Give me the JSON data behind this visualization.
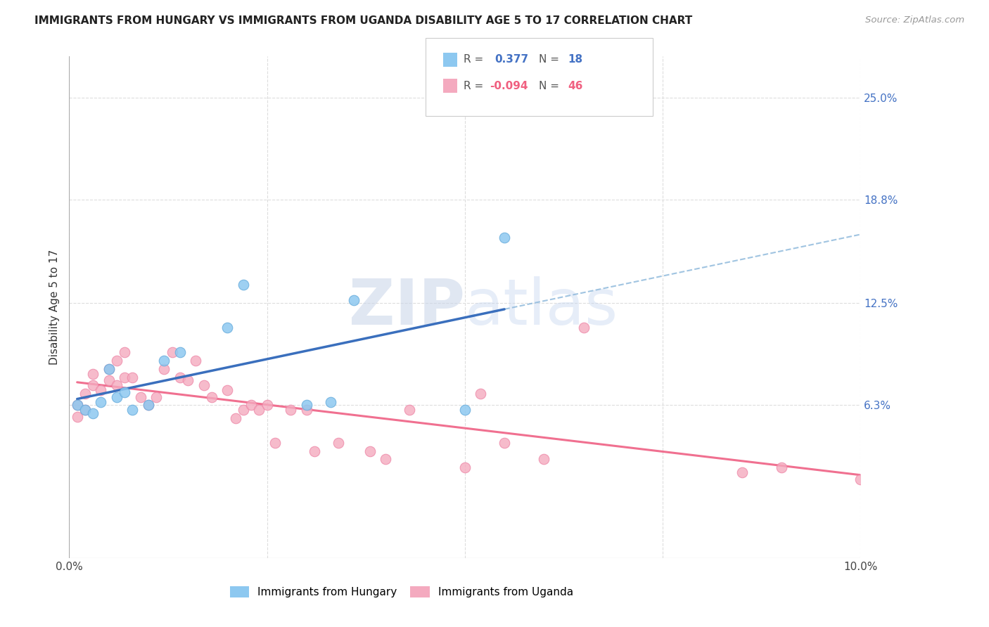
{
  "title": "IMMIGRANTS FROM HUNGARY VS IMMIGRANTS FROM UGANDA DISABILITY AGE 5 TO 17 CORRELATION CHART",
  "source": "Source: ZipAtlas.com",
  "ylabel": "Disability Age 5 to 17",
  "hungary_R": 0.377,
  "hungary_N": 18,
  "uganda_R": -0.094,
  "uganda_N": 46,
  "hungary_color": "#8DC8F0",
  "uganda_color": "#F4AABF",
  "hungary_line_color": "#3A6FBD",
  "uganda_line_color": "#F07090",
  "dashed_line_color": "#90BADC",
  "watermark_zip": "ZIP",
  "watermark_atlas": "atlas",
  "xlim": [
    0.0,
    0.1
  ],
  "ylim": [
    -0.03,
    0.275
  ],
  "ytick_values": [
    0.063,
    0.125,
    0.188,
    0.25
  ],
  "ytick_labels": [
    "6.3%",
    "12.5%",
    "18.8%",
    "25.0%"
  ],
  "xtick_values": [
    0.0,
    0.025,
    0.05,
    0.075,
    0.1
  ],
  "xtick_labels": [
    "0.0%",
    "",
    "",
    "",
    "10.0%"
  ],
  "hungary_x": [
    0.001,
    0.002,
    0.003,
    0.004,
    0.006,
    0.007,
    0.008,
    0.01,
    0.012,
    0.014,
    0.02,
    0.022,
    0.03,
    0.033,
    0.036,
    0.05,
    0.055,
    0.005
  ],
  "hungary_y": [
    0.063,
    0.06,
    0.058,
    0.065,
    0.068,
    0.071,
    0.06,
    0.063,
    0.09,
    0.095,
    0.11,
    0.136,
    0.063,
    0.065,
    0.127,
    0.06,
    0.165,
    0.085
  ],
  "uganda_x": [
    0.001,
    0.001,
    0.002,
    0.002,
    0.003,
    0.003,
    0.004,
    0.005,
    0.005,
    0.006,
    0.006,
    0.007,
    0.007,
    0.008,
    0.009,
    0.01,
    0.011,
    0.012,
    0.013,
    0.014,
    0.015,
    0.016,
    0.017,
    0.018,
    0.02,
    0.021,
    0.022,
    0.023,
    0.024,
    0.025,
    0.026,
    0.028,
    0.03,
    0.031,
    0.034,
    0.038,
    0.04,
    0.043,
    0.05,
    0.052,
    0.055,
    0.06,
    0.065,
    0.085,
    0.09,
    0.1
  ],
  "uganda_y": [
    0.063,
    0.056,
    0.07,
    0.06,
    0.075,
    0.082,
    0.072,
    0.085,
    0.078,
    0.09,
    0.075,
    0.095,
    0.08,
    0.08,
    0.068,
    0.063,
    0.068,
    0.085,
    0.095,
    0.08,
    0.078,
    0.09,
    0.075,
    0.068,
    0.072,
    0.055,
    0.06,
    0.063,
    0.06,
    0.063,
    0.04,
    0.06,
    0.06,
    0.035,
    0.04,
    0.035,
    0.03,
    0.06,
    0.025,
    0.07,
    0.04,
    0.03,
    0.11,
    0.022,
    0.025,
    0.018
  ],
  "background_color": "#FFFFFF",
  "grid_color": "#DDDDDD"
}
